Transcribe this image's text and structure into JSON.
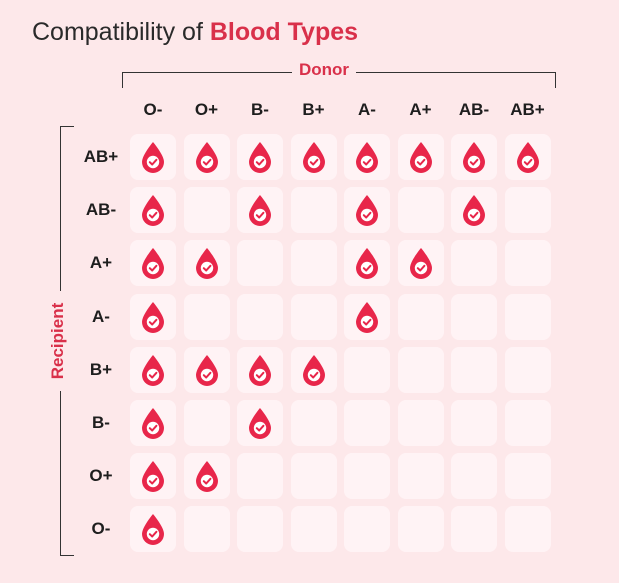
{
  "title": {
    "prefix": "Compatibility of",
    "highlight": "Blood Types"
  },
  "axis": {
    "donor": "Donor",
    "recipient": "Recipient"
  },
  "donors": [
    "O-",
    "O+",
    "B-",
    "B+",
    "A-",
    "A+",
    "AB-",
    "AB+"
  ],
  "recipients": [
    "AB+",
    "AB-",
    "A+",
    "A-",
    "B+",
    "B-",
    "O+",
    "O-"
  ],
  "compatibility": [
    [
      1,
      1,
      1,
      1,
      1,
      1,
      1,
      1
    ],
    [
      1,
      0,
      1,
      0,
      1,
      0,
      1,
      0
    ],
    [
      1,
      1,
      0,
      0,
      1,
      1,
      0,
      0
    ],
    [
      1,
      0,
      0,
      0,
      1,
      0,
      0,
      0
    ],
    [
      1,
      1,
      1,
      1,
      0,
      0,
      0,
      0
    ],
    [
      1,
      0,
      1,
      0,
      0,
      0,
      0,
      0
    ],
    [
      1,
      1,
      0,
      0,
      0,
      0,
      0,
      0
    ],
    [
      1,
      0,
      0,
      0,
      0,
      0,
      0,
      0
    ]
  ],
  "icons": {
    "compatible": "blood-drop-check-icon"
  },
  "colors": {
    "accent": "#d9304a",
    "drop": "#e8264a",
    "cell": "#fff3f5",
    "background": "#fde8ea"
  }
}
